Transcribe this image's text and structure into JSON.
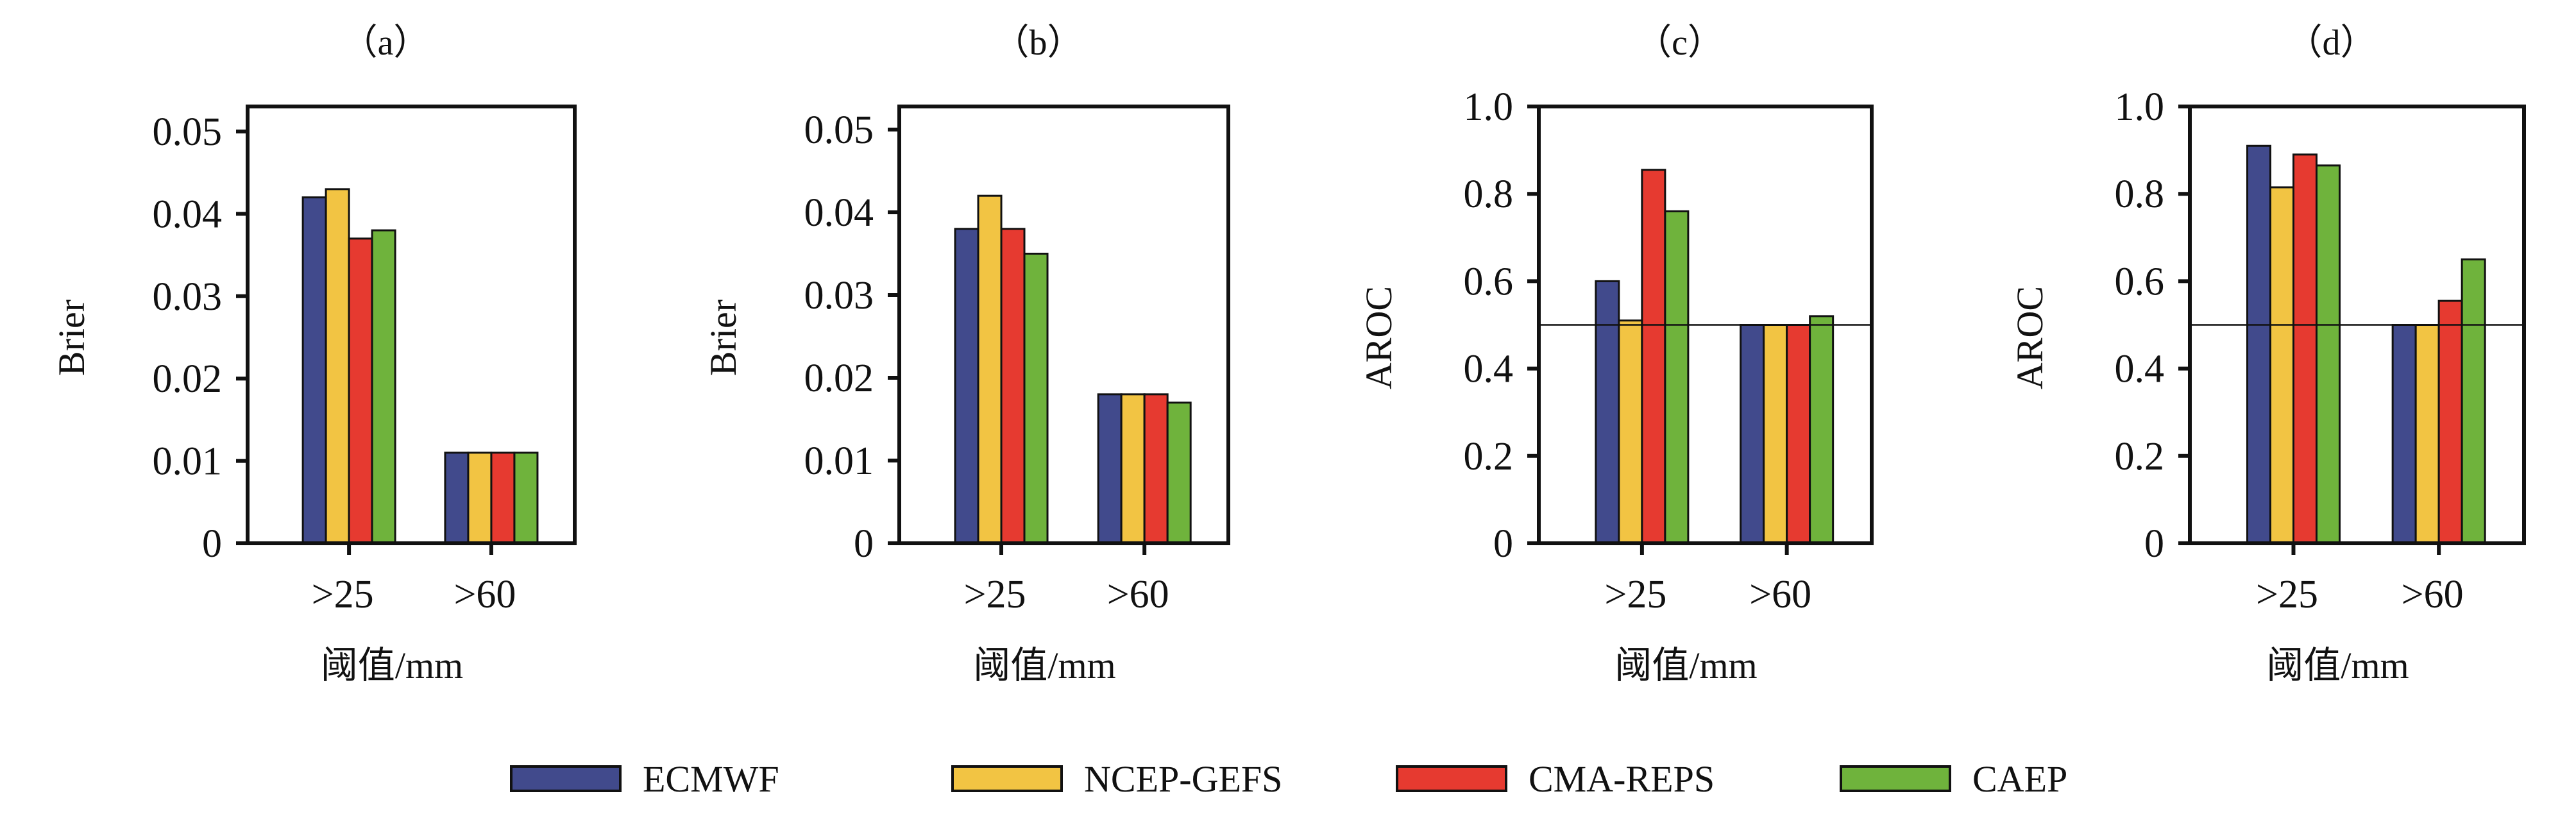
{
  "chart_data": {
    "type": "bar",
    "legend": {
      "placement": "bottom",
      "entries": [
        {
          "name": "ECMWF",
          "color": "#414a8c"
        },
        {
          "name": "NCEP-GEFS",
          "color": "#f2c443"
        },
        {
          "name": "CMA-REPS",
          "color": "#e63a30"
        },
        {
          "name": "CAEP",
          "color": "#6fb33c"
        }
      ]
    },
    "panels": [
      {
        "title": "（a）",
        "xlabel": "阈值/mm",
        "ylabel": "Brier",
        "categories": [
          ">25",
          ">60"
        ],
        "ylim": [
          0,
          0.053
        ],
        "yticks": [
          0,
          0.01,
          0.02,
          0.03,
          0.04,
          0.05
        ],
        "ytick_labels": [
          "0",
          "0.01",
          "0.02",
          "0.03",
          "0.04",
          "0.05"
        ],
        "reference_line": null,
        "series": [
          {
            "name": "ECMWF",
            "values": [
              0.042,
              0.011
            ]
          },
          {
            "name": "NCEP-GEFS",
            "values": [
              0.043,
              0.011
            ]
          },
          {
            "name": "CMA-REPS",
            "values": [
              0.037,
              0.011
            ]
          },
          {
            "name": "CAEP",
            "values": [
              0.038,
              0.011
            ]
          }
        ]
      },
      {
        "title": "（b）",
        "xlabel": "阈值/mm",
        "ylabel": "Brier",
        "categories": [
          ">25",
          ">60"
        ],
        "ylim": [
          0,
          0.052
        ],
        "yticks": [
          0,
          0.01,
          0.02,
          0.03,
          0.04,
          0.05
        ],
        "ytick_labels": [
          "0",
          "0.01",
          "0.02",
          "0.03",
          "0.04",
          "0.05"
        ],
        "reference_line": null,
        "series": [
          {
            "name": "ECMWF",
            "values": [
              0.038,
              0.018
            ]
          },
          {
            "name": "NCEP-GEFS",
            "values": [
              0.042,
              0.018
            ]
          },
          {
            "name": "CMA-REPS",
            "values": [
              0.038,
              0.018
            ]
          },
          {
            "name": "CAEP",
            "values": [
              0.035,
              0.017
            ]
          }
        ]
      },
      {
        "title": "（c）",
        "xlabel": "阈值/mm",
        "ylabel": "AROC",
        "categories": [
          ">25",
          ">60"
        ],
        "ylim": [
          0,
          1.0
        ],
        "yticks": [
          0,
          0.2,
          0.4,
          0.6,
          0.8,
          1.0
        ],
        "ytick_labels": [
          "0",
          "0.2",
          "0.4",
          "0.6",
          "0.8",
          "1.0"
        ],
        "reference_line": 0.5,
        "series": [
          {
            "name": "ECMWF",
            "values": [
              0.6,
              0.5
            ]
          },
          {
            "name": "NCEP-GEFS",
            "values": [
              0.51,
              0.5
            ]
          },
          {
            "name": "CMA-REPS",
            "values": [
              0.855,
              0.5
            ]
          },
          {
            "name": "CAEP",
            "values": [
              0.76,
              0.52
            ]
          }
        ]
      },
      {
        "title": "（d）",
        "xlabel": "阈值/mm",
        "ylabel": "AROC",
        "categories": [
          ">25",
          ">60"
        ],
        "ylim": [
          0,
          1.0
        ],
        "yticks": [
          0,
          0.2,
          0.4,
          0.6,
          0.8,
          1.0
        ],
        "ytick_labels": [
          "0",
          "0.2",
          "0.4",
          "0.6",
          "0.8",
          "1.0"
        ],
        "reference_line": 0.5,
        "series": [
          {
            "name": "ECMWF",
            "values": [
              0.91,
              0.5
            ]
          },
          {
            "name": "NCEP-GEFS",
            "values": [
              0.815,
              0.5
            ]
          },
          {
            "name": "CMA-REPS",
            "values": [
              0.89,
              0.555
            ]
          },
          {
            "name": "CAEP",
            "values": [
              0.865,
              0.65
            ]
          }
        ]
      }
    ]
  }
}
